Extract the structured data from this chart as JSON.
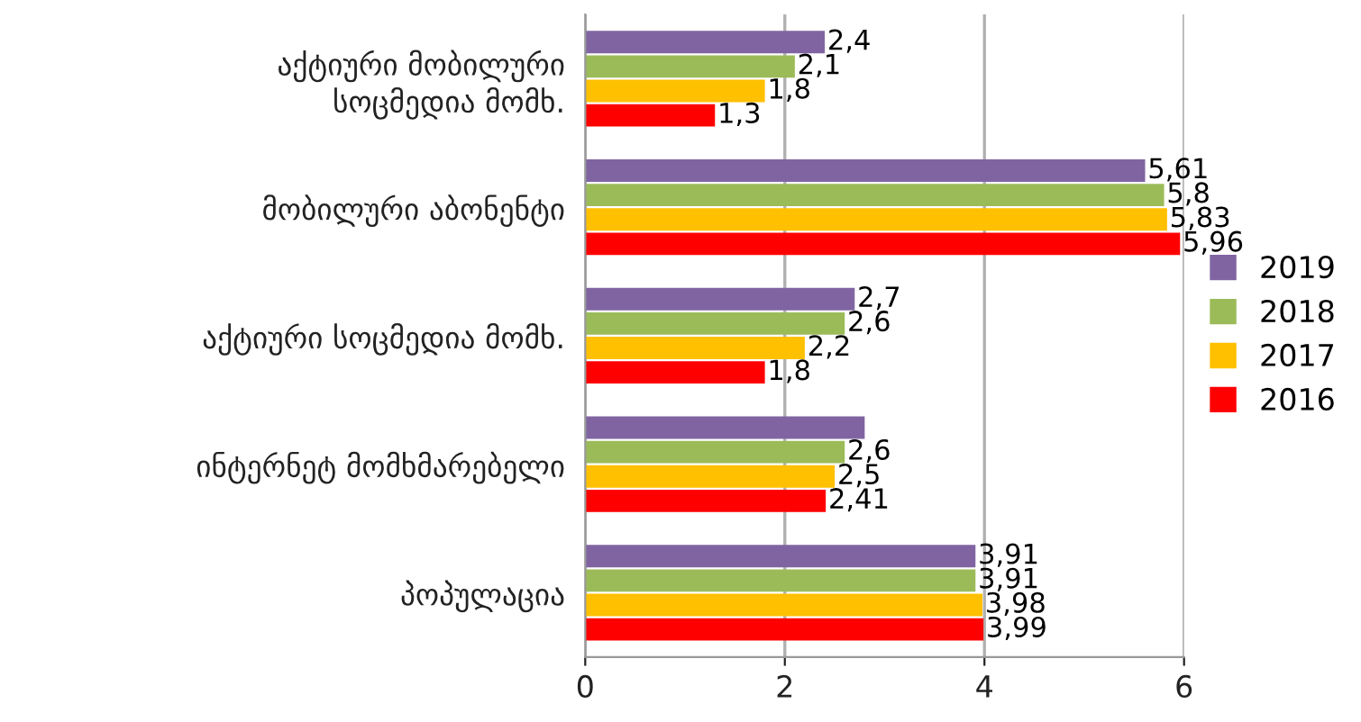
{
  "chart_data": {
    "type": "bar",
    "orientation": "horizontal",
    "categories": [
      "აქტიური მობილური\nსოცმედია მომხ.",
      "მობილური აბონენტი",
      "აქტიური სოცმედია მომხ.",
      "ინტერნეტ მომხმარებელი",
      "პოპულაცია"
    ],
    "series": [
      {
        "name": "2019",
        "color": "#8064a2",
        "values": [
          2.4,
          5.61,
          2.7,
          2.8,
          3.91
        ],
        "value_labels": [
          "2,4",
          "5,61",
          "2,7",
          null,
          "3,91"
        ]
      },
      {
        "name": "2018",
        "color": "#9bbb59",
        "values": [
          2.1,
          5.8,
          2.6,
          2.6,
          3.91
        ],
        "value_labels": [
          "2,1",
          "5,8",
          "2,6",
          "2,6",
          "3,91"
        ]
      },
      {
        "name": "2017",
        "color": "#ffc000",
        "values": [
          1.8,
          5.83,
          2.2,
          2.5,
          3.98
        ],
        "value_labels": [
          "1,8",
          "5,83",
          "2,2",
          "2,5",
          "3,98"
        ]
      },
      {
        "name": "2016",
        "color": "#ff0000",
        "values": [
          1.3,
          5.96,
          1.8,
          2.41,
          3.99
        ],
        "value_labels": [
          "1,3",
          "5,96",
          "1,8",
          "2,41",
          "3,99"
        ]
      }
    ],
    "xlim": [
      0,
      6
    ],
    "xticks": [
      0,
      2,
      4,
      6
    ],
    "grid": "x",
    "legend": "right"
  }
}
